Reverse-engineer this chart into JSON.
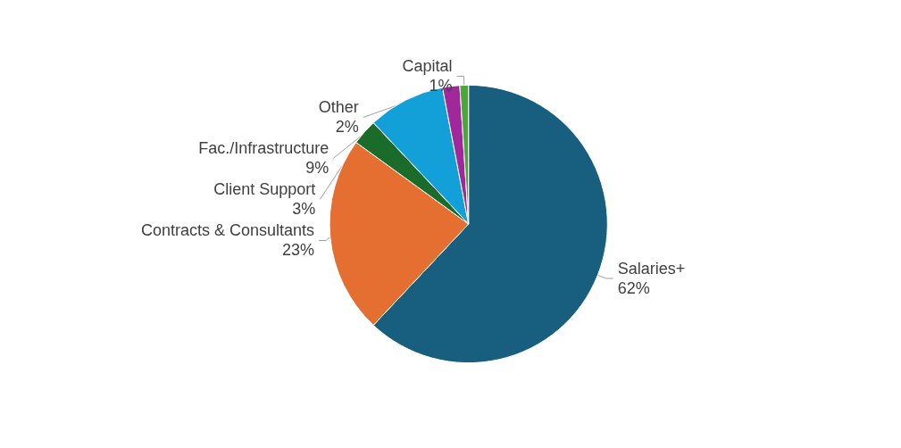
{
  "chart_data": {
    "type": "pie",
    "categories": [
      "Salaries+",
      "Contracts & Consultants",
      "Client Support",
      "Fac./Infrastructure",
      "Other",
      "Capital"
    ],
    "values": [
      62,
      23,
      3,
      9,
      2,
      1
    ],
    "colors": [
      "#185e7e",
      "#e46f30",
      "#1b6b2b",
      "#13a0d8",
      "#a0289a",
      "#4aa838"
    ],
    "value_labels": [
      "62%",
      "23%",
      "3%",
      "9%",
      "2%",
      "1%"
    ],
    "legend": false
  }
}
